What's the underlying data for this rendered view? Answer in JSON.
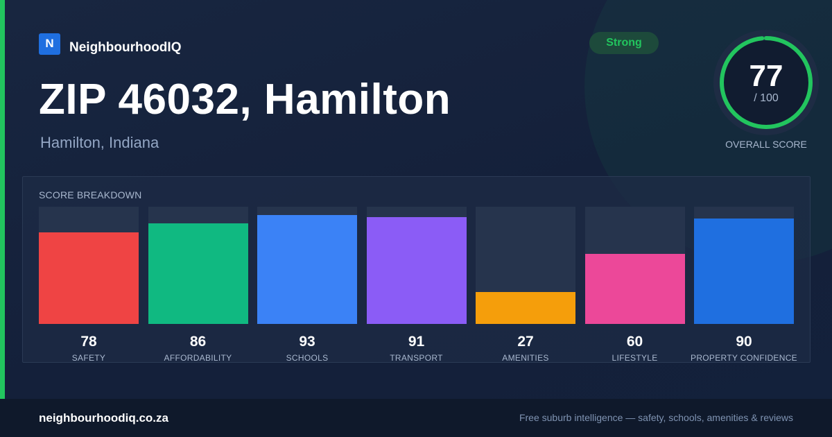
{
  "brand": {
    "logo_letter": "N",
    "name": "NeighbourhoodIQ"
  },
  "header": {
    "title": "ZIP 46032, Hamilton",
    "subtitle": "Hamilton, Indiana"
  },
  "badge": {
    "label": "Strong"
  },
  "overall": {
    "score": "77",
    "max": "/ 100",
    "caption": "OVERALL SCORE",
    "value": 77,
    "out_of": 100
  },
  "breakdown": {
    "title": "SCORE BREAKDOWN",
    "items": [
      {
        "label": "SAFETY",
        "value": "78",
        "score": 78,
        "color": "#ef4444"
      },
      {
        "label": "AFFORDABILITY",
        "value": "86",
        "score": 86,
        "color": "#10b981"
      },
      {
        "label": "SCHOOLS",
        "value": "93",
        "score": 93,
        "color": "#3b82f6"
      },
      {
        "label": "TRANSPORT",
        "value": "91",
        "score": 91,
        "color": "#8b5cf6"
      },
      {
        "label": "AMENITIES",
        "value": "27",
        "score": 27,
        "color": "#f59e0b"
      },
      {
        "label": "LIFESTYLE",
        "value": "60",
        "score": 60,
        "color": "#ec4899"
      },
      {
        "label": "PROPERTY CONFIDENCE",
        "value": "90",
        "score": 90,
        "color": "#1f6fe0"
      }
    ]
  },
  "footer": {
    "domain": "neighbourhoodiq.co.za",
    "tagline": "Free suburb intelligence — safety, schools, amenities & reviews"
  },
  "colors": {
    "accent": "#22c55e",
    "background": "#15213a",
    "footer": "#0f192b"
  },
  "icons": {
    "logo": "n-logo-icon"
  }
}
